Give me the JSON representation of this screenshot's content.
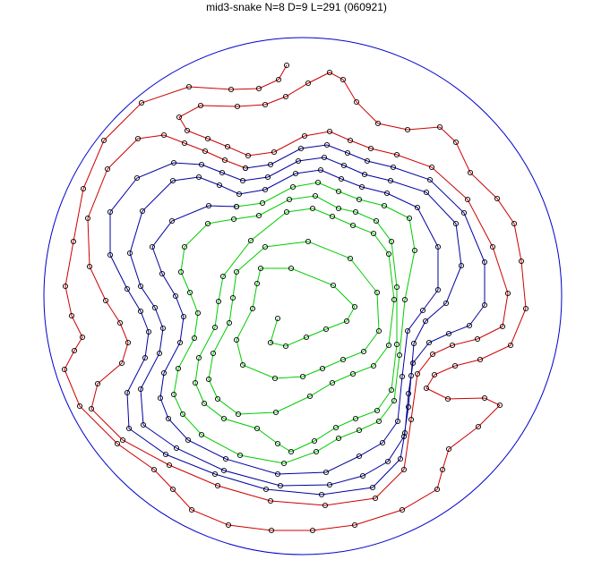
{
  "title": "mid3-snake N=8 D=9 L=291 (060921)",
  "colors": {
    "boundary_circle": "#0000cc",
    "outer_segment": "#cc0000",
    "middle_segment": "#0000a0",
    "inner_segment": "#00cc00",
    "vertex_marker": "#000000"
  }
}
